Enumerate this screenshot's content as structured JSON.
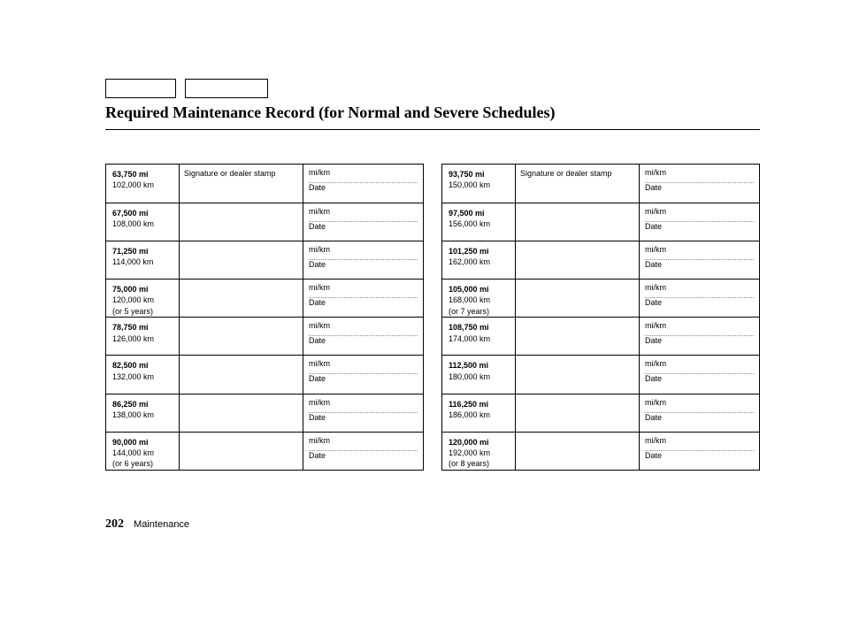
{
  "title": "Required Maintenance Record (for Normal and Severe Schedules)",
  "signature_label": "Signature or dealer stamp",
  "mikm_label": "mi/km",
  "date_label": "Date",
  "page_number": "202",
  "section_label": "Maintenance",
  "left_table": [
    {
      "mi": "63,750 mi",
      "km": "102,000 km",
      "extra": ""
    },
    {
      "mi": "67,500 mi",
      "km": "108,000 km",
      "extra": ""
    },
    {
      "mi": "71,250 mi",
      "km": "114,000 km",
      "extra": ""
    },
    {
      "mi": "75,000 mi",
      "km": "120,000 km",
      "extra": "(or 5 years)"
    },
    {
      "mi": "78,750 mi",
      "km": "126,000 km",
      "extra": ""
    },
    {
      "mi": "82,500 mi",
      "km": "132,000 km",
      "extra": ""
    },
    {
      "mi": "86,250 mi",
      "km": "138,000 km",
      "extra": ""
    },
    {
      "mi": "90,000 mi",
      "km": "144,000 km",
      "extra": "(or 6 years)"
    }
  ],
  "right_table": [
    {
      "mi": "93,750 mi",
      "km": "150,000 km",
      "extra": ""
    },
    {
      "mi": "97,500 mi",
      "km": "156,000 km",
      "extra": ""
    },
    {
      "mi": "101,250 mi",
      "km": "162,000 km",
      "extra": ""
    },
    {
      "mi": "105,000 mi",
      "km": "168,000 km",
      "extra": "(or 7 years)"
    },
    {
      "mi": "108,750 mi",
      "km": "174,000 km",
      "extra": ""
    },
    {
      "mi": "112,500 mi",
      "km": "180,000 km",
      "extra": ""
    },
    {
      "mi": "116,250 mi",
      "km": "186,000 km",
      "extra": ""
    },
    {
      "mi": "120,000 mi",
      "km": "192,000 km",
      "extra": "(or 8 years)"
    }
  ]
}
